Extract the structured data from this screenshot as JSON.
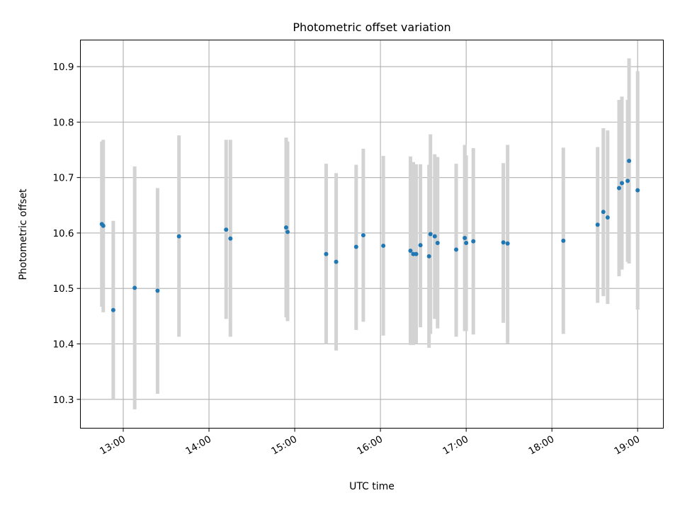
{
  "chart_data": {
    "type": "scatter",
    "title": "Photometric offset variation",
    "xlabel": "UTC time",
    "ylabel": "Photometric offset",
    "xlim": [
      "12:30",
      "19:18"
    ],
    "ylim": [
      10.248,
      10.948
    ],
    "x_ticks": [
      "13:00",
      "14:00",
      "15:00",
      "16:00",
      "17:00",
      "18:00",
      "19:00"
    ],
    "y_ticks": [
      "10.3",
      "10.4",
      "10.5",
      "10.6",
      "10.7",
      "10.8",
      "10.9"
    ],
    "grid": true,
    "marker_color": "#1f77b4",
    "errorbar_color": "#d3d3d3",
    "series": [
      {
        "points": [
          {
            "t": "12:45",
            "y": 10.616,
            "ylo": 10.467,
            "yhi": 10.765
          },
          {
            "t": "12:46",
            "y": 10.613,
            "ylo": 10.457,
            "yhi": 10.768
          },
          {
            "t": "12:53",
            "y": 10.461,
            "ylo": 10.3,
            "yhi": 10.622
          },
          {
            "t": "13:08",
            "y": 10.501,
            "ylo": 10.282,
            "yhi": 10.72
          },
          {
            "t": "13:24",
            "y": 10.496,
            "ylo": 10.31,
            "yhi": 10.681
          },
          {
            "t": "13:39",
            "y": 10.594,
            "ylo": 10.413,
            "yhi": 10.776
          },
          {
            "t": "14:12",
            "y": 10.606,
            "ylo": 10.445,
            "yhi": 10.768
          },
          {
            "t": "14:15",
            "y": 10.59,
            "ylo": 10.413,
            "yhi": 10.768
          },
          {
            "t": "14:54",
            "y": 10.61,
            "ylo": 10.448,
            "yhi": 10.772
          },
          {
            "t": "14:55",
            "y": 10.602,
            "ylo": 10.441,
            "yhi": 10.765
          },
          {
            "t": "15:22",
            "y": 10.562,
            "ylo": 10.4,
            "yhi": 10.725
          },
          {
            "t": "15:29",
            "y": 10.548,
            "ylo": 10.388,
            "yhi": 10.708
          },
          {
            "t": "15:43",
            "y": 10.575,
            "ylo": 10.425,
            "yhi": 10.723
          },
          {
            "t": "15:48",
            "y": 10.596,
            "ylo": 10.44,
            "yhi": 10.752
          },
          {
            "t": "16:02",
            "y": 10.577,
            "ylo": 10.415,
            "yhi": 10.739
          },
          {
            "t": "16:21",
            "y": 10.568,
            "ylo": 10.398,
            "yhi": 10.738
          },
          {
            "t": "16:23",
            "y": 10.562,
            "ylo": 10.398,
            "yhi": 10.728
          },
          {
            "t": "16:25",
            "y": 10.562,
            "ylo": 10.4,
            "yhi": 10.724
          },
          {
            "t": "16:28",
            "y": 10.578,
            "ylo": 10.43,
            "yhi": 10.724
          },
          {
            "t": "16:34",
            "y": 10.558,
            "ylo": 10.393,
            "yhi": 10.723
          },
          {
            "t": "16:35",
            "y": 10.598,
            "ylo": 10.418,
            "yhi": 10.778
          },
          {
            "t": "16:38",
            "y": 10.594,
            "ylo": 10.445,
            "yhi": 10.742
          },
          {
            "t": "16:40",
            "y": 10.582,
            "ylo": 10.428,
            "yhi": 10.737
          },
          {
            "t": "16:53",
            "y": 10.57,
            "ylo": 10.413,
            "yhi": 10.725
          },
          {
            "t": "16:59",
            "y": 10.591,
            "ylo": 10.423,
            "yhi": 10.759
          },
          {
            "t": "17:00",
            "y": 10.582,
            "ylo": 10.423,
            "yhi": 10.74
          },
          {
            "t": "17:05",
            "y": 10.585,
            "ylo": 10.417,
            "yhi": 10.753
          },
          {
            "t": "17:26",
            "y": 10.583,
            "ylo": 10.438,
            "yhi": 10.726
          },
          {
            "t": "17:29",
            "y": 10.581,
            "ylo": 10.401,
            "yhi": 10.759
          },
          {
            "t": "18:08",
            "y": 10.586,
            "ylo": 10.418,
            "yhi": 10.754
          },
          {
            "t": "18:32",
            "y": 10.615,
            "ylo": 10.474,
            "yhi": 10.755
          },
          {
            "t": "18:36",
            "y": 10.638,
            "ylo": 10.486,
            "yhi": 10.789
          },
          {
            "t": "18:39",
            "y": 10.628,
            "ylo": 10.472,
            "yhi": 10.785
          },
          {
            "t": "18:47",
            "y": 10.681,
            "ylo": 10.522,
            "yhi": 10.84
          },
          {
            "t": "18:49",
            "y": 10.69,
            "ylo": 10.534,
            "yhi": 10.846
          },
          {
            "t": "18:53",
            "y": 10.694,
            "ylo": 10.548,
            "yhi": 10.84
          },
          {
            "t": "18:54",
            "y": 10.73,
            "ylo": 10.545,
            "yhi": 10.915
          },
          {
            "t": "19:00",
            "y": 10.677,
            "ylo": 10.462,
            "yhi": 10.892
          }
        ]
      }
    ]
  }
}
